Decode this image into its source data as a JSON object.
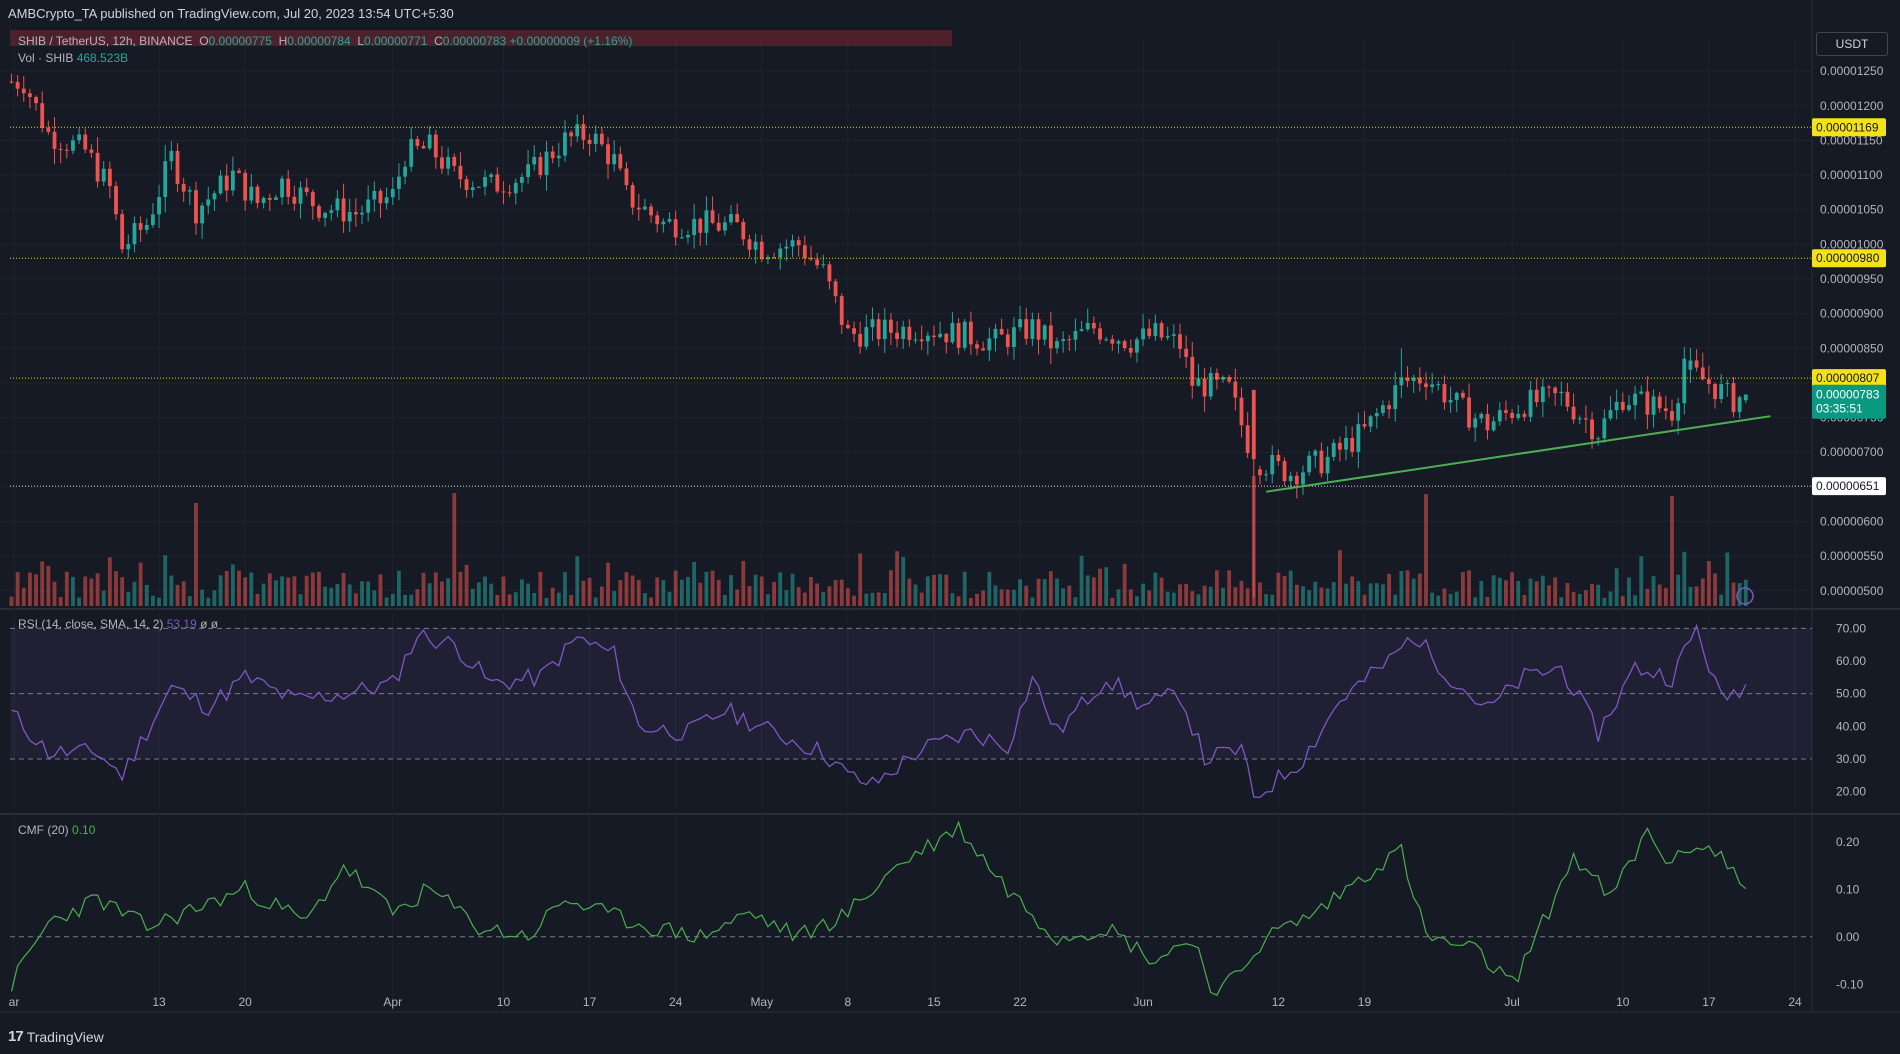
{
  "header": {
    "published": "AMBCrypto_TA published on TradingView.com, Jul 20, 2023 13:54 UTC+5:30"
  },
  "symbol": {
    "name": "SHIB / TetherUS, 12h, BINANCE",
    "ohlc": {
      "O": "0.00000775",
      "H": "0.00000784",
      "L": "0.00000771",
      "C": "0.00000783"
    },
    "change": "+0.00000009 (+1.16%)"
  },
  "volume": {
    "label": "Vol · SHIB",
    "value": "468.523B"
  },
  "currency": "USDT",
  "rsi": {
    "label": "RSI (14, close, SMA, 14, 2)",
    "value": "53.19",
    "extra": "ø ø"
  },
  "cmf": {
    "label": "CMF (20)",
    "value": "0.10"
  },
  "branding": {
    "name": "TradingView"
  },
  "colors": {
    "up": "#26a69a",
    "down": "#ef5350",
    "rsi": "#7e57c2",
    "cmf": "#4caf50",
    "trendline": "#4caf50",
    "level": "#f0d000"
  },
  "chart_data": [
    {
      "type": "candlestick",
      "title": "SHIB / TetherUS, 12h, BINANCE",
      "x_ticks": [
        "ar",
        "13",
        "20",
        "Apr",
        "10",
        "17",
        "24",
        "May",
        "8",
        "15",
        "22",
        "Jun",
        "12",
        "19",
        "Jul",
        "10",
        "17",
        "24"
      ],
      "y_ticks": [
        "0.00001250",
        "0.00001200",
        "0.00001150",
        "0.00001100",
        "0.00001050",
        "0.00001000",
        "0.00000950",
        "0.00000900",
        "0.00000850",
        "0.00000800",
        "0.00000750",
        "0.00000700",
        "0.00000650",
        "0.00000600",
        "0.00000550",
        "0.00000500"
      ],
      "ylim": [
        4.78e-06,
        1.295e-05
      ],
      "horizontal_levels": [
        {
          "value": "0.00001169",
          "style": "yellow-dotted"
        },
        {
          "value": "0.00000980",
          "style": "yellow-dotted"
        },
        {
          "value": "0.00000807",
          "style": "yellow-dotted"
        },
        {
          "value": "0.00000651",
          "style": "white-dotted"
        }
      ],
      "last_price": {
        "value": "0.00000783",
        "countdown": "03:35:51"
      },
      "trendline": {
        "from": [
          6.43e-06,
          "Jun 11"
        ],
        "to": [
          7.52e-06,
          "Jul 22"
        ]
      },
      "close_anchors": [
        [
          "Mar 2",
          1.235e-05
        ],
        [
          "Mar 4",
          1.16e-05
        ],
        [
          "Mar 7",
          1.135e-05
        ],
        [
          "Mar 9",
          1.08e-05
        ],
        [
          "Mar 10",
          9.95e-06
        ],
        [
          "Mar 12",
          1.03e-05
        ],
        [
          "Mar 14",
          1.125e-05
        ],
        [
          "Mar 16",
          1.05e-05
        ],
        [
          "Mar 19",
          1.1e-05
        ],
        [
          "Mar 21",
          1.06e-05
        ],
        [
          "Mar 23",
          1.09e-05
        ],
        [
          "Mar 26",
          1.055e-05
        ],
        [
          "Mar 29",
          1.045e-05
        ],
        [
          "Apr 1",
          1.07e-05
        ],
        [
          "Apr 2",
          1.13e-05
        ],
        [
          "Apr 4",
          1.14e-05
        ],
        [
          "Apr 6",
          1.1e-05
        ],
        [
          "Apr 9",
          1.085e-05
        ],
        [
          "Apr 12",
          1.1e-05
        ],
        [
          "Apr 15",
          1.15e-05
        ],
        [
          "Apr 17",
          1.16e-05
        ],
        [
          "Apr 19",
          1.12e-05
        ],
        [
          "Apr 20",
          1.07e-05
        ],
        [
          "Apr 23",
          1.03e-05
        ],
        [
          "Apr 26",
          1.03e-05
        ],
        [
          "Apr 29",
          1.025e-05
        ],
        [
          "May 1",
          9.95e-06
        ],
        [
          "May 4",
          1e-05
        ],
        [
          "May 6",
          9.6e-06
        ],
        [
          "May 8",
          8.7e-06
        ],
        [
          "May 11",
          8.75e-06
        ],
        [
          "May 14",
          8.8e-06
        ],
        [
          "May 17",
          8.7e-06
        ],
        [
          "May 20",
          8.6e-06
        ],
        [
          "May 23",
          8.8e-06
        ],
        [
          "May 25",
          8.5e-06
        ],
        [
          "May 28",
          8.8e-06
        ],
        [
          "May 31",
          8.6e-06
        ],
        [
          "Jun 2",
          8.7e-06
        ],
        [
          "Jun 4",
          8.55e-06
        ],
        [
          "Jun 5",
          8e-06
        ],
        [
          "Jun 8",
          7.9e-06
        ],
        [
          "Jun 10",
          6.9e-06
        ],
        [
          "Jun 13",
          6.7e-06
        ],
        [
          "Jun 16",
          6.9e-06
        ],
        [
          "Jun 19",
          7.3e-06
        ],
        [
          "Jun 22",
          8e-06
        ],
        [
          "Jun 24",
          8.1e-06
        ],
        [
          "Jun 27",
          7.6e-06
        ],
        [
          "Jun 29",
          7.4e-06
        ],
        [
          "Jul 2",
          7.7e-06
        ],
        [
          "Jul 5",
          7.8e-06
        ],
        [
          "Jul 8",
          7.3e-06
        ],
        [
          "Jul 10",
          7.8e-06
        ],
        [
          "Jul 12",
          7.7e-06
        ],
        [
          "Jul 14",
          7.6e-06
        ],
        [
          "Jul 15",
          8.2e-06
        ],
        [
          "Jul 17",
          8e-06
        ],
        [
          "Jul 19",
          7.75e-06
        ],
        [
          "Jul 20",
          7.83e-06
        ]
      ],
      "volume_spikes": [
        [
          "Mar 16",
          "tall"
        ],
        [
          "Apr 6",
          "tall"
        ],
        [
          "Jun 10",
          "tall"
        ],
        [
          "Jun 24",
          "tall"
        ],
        [
          "Jul 14",
          "tall"
        ]
      ]
    },
    {
      "type": "line",
      "title": "RSI (14, close, SMA, 14, 2)",
      "y_ticks": [
        "70.00",
        "60.00",
        "50.00",
        "40.00",
        "30.00",
        "20.00"
      ],
      "ylim": [
        15,
        75
      ],
      "band": [
        30,
        70
      ],
      "midline": 50,
      "anchors": [
        [
          "Mar 1",
          44
        ],
        [
          "Mar 4",
          32
        ],
        [
          "Mar 8",
          32
        ],
        [
          "Mar 10",
          25
        ],
        [
          "Mar 14",
          52
        ],
        [
          "Mar 17",
          46
        ],
        [
          "Mar 20",
          55
        ],
        [
          "Mar 24",
          48
        ],
        [
          "Mar 28",
          50
        ],
        [
          "Apr 1",
          53
        ],
        [
          "Apr 3",
          68
        ],
        [
          "Apr 6",
          65
        ],
        [
          "Apr 9",
          53
        ],
        [
          "Apr 13",
          55
        ],
        [
          "Apr 16",
          67
        ],
        [
          "Apr 19",
          62
        ],
        [
          "Apr 21",
          40
        ],
        [
          "Apr 25",
          38
        ],
        [
          "Apr 28",
          45
        ],
        [
          "May 2",
          38
        ],
        [
          "May 6",
          32
        ],
        [
          "May 8",
          25
        ],
        [
          "May 10",
          22
        ],
        [
          "May 14",
          33
        ],
        [
          "May 18",
          38
        ],
        [
          "May 21",
          34
        ],
        [
          "May 23",
          55
        ],
        [
          "May 25",
          38
        ],
        [
          "May 29",
          55
        ],
        [
          "Jun 1",
          46
        ],
        [
          "Jun 4",
          50
        ],
        [
          "Jun 6",
          30
        ],
        [
          "Jun 9",
          33
        ],
        [
          "Jun 10",
          18
        ],
        [
          "Jun 14",
          30
        ],
        [
          "Jun 17",
          48
        ],
        [
          "Jun 21",
          60
        ],
        [
          "Jun 23",
          68
        ],
        [
          "Jun 26",
          55
        ],
        [
          "Jun 29",
          45
        ],
        [
          "Jul 2",
          55
        ],
        [
          "Jul 5",
          58
        ],
        [
          "Jul 8",
          38
        ],
        [
          "Jul 11",
          58
        ],
        [
          "Jul 14",
          55
        ],
        [
          "Jul 16",
          70
        ],
        [
          "Jul 18",
          48
        ],
        [
          "Jul 20",
          53
        ]
      ]
    },
    {
      "type": "line",
      "title": "CMF (20)",
      "y_ticks": [
        "0.20",
        "0.10",
        "0.00",
        "-0.10"
      ],
      "ylim": [
        -0.15,
        0.25
      ],
      "zero_line": 0,
      "anchors": [
        [
          "Mar 1",
          -0.1
        ],
        [
          "Mar 4",
          0.03
        ],
        [
          "Mar 8",
          0.08
        ],
        [
          "Mar 12",
          0.02
        ],
        [
          "Mar 16",
          0.06
        ],
        [
          "Mar 20",
          0.1
        ],
        [
          "Mar 25",
          0.03
        ],
        [
          "Mar 28",
          0.15
        ],
        [
          "Apr 1",
          0.05
        ],
        [
          "Apr 4",
          0.1
        ],
        [
          "Apr 8",
          0.02
        ],
        [
          "Apr 12",
          0.0
        ],
        [
          "Apr 15",
          0.08
        ],
        [
          "Apr 18",
          0.05
        ],
        [
          "Apr 22",
          0.02
        ],
        [
          "Apr 26",
          0.0
        ],
        [
          "Apr 30",
          0.05
        ],
        [
          "May 4",
          0.0
        ],
        [
          "May 8",
          0.05
        ],
        [
          "May 12",
          0.15
        ],
        [
          "May 17",
          0.23
        ],
        [
          "May 21",
          0.1
        ],
        [
          "May 25",
          0.0
        ],
        [
          "May 29",
          0.02
        ],
        [
          "Jun 2",
          -0.05
        ],
        [
          "Jun 5",
          0.0
        ],
        [
          "Jun 7",
          -0.13
        ],
        [
          "Jun 11",
          0.0
        ],
        [
          "Jun 15",
          0.05
        ],
        [
          "Jun 20",
          0.15
        ],
        [
          "Jun 22",
          0.18
        ],
        [
          "Jun 24",
          0.0
        ],
        [
          "Jun 28",
          -0.03
        ],
        [
          "Jul 1",
          -0.1
        ],
        [
          "Jul 3",
          0.0
        ],
        [
          "Jul 6",
          0.17
        ],
        [
          "Jul 9",
          0.08
        ],
        [
          "Jul 12",
          0.22
        ],
        [
          "Jul 14",
          0.15
        ],
        [
          "Jul 16",
          0.2
        ],
        [
          "Jul 18",
          0.17
        ],
        [
          "Jul 20",
          0.1
        ]
      ]
    }
  ]
}
